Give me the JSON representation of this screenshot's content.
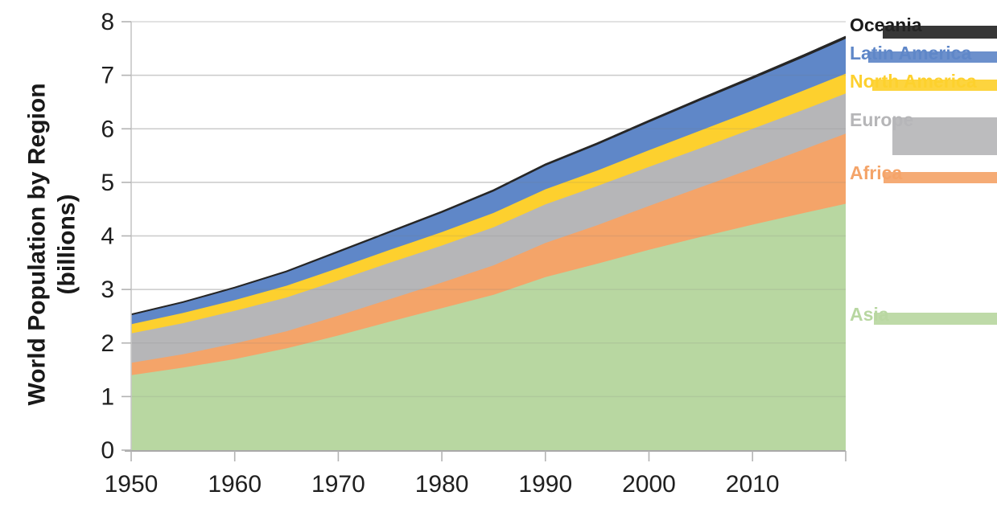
{
  "chart_data": {
    "type": "area",
    "stacked": true,
    "title": "",
    "ylabel": "World Population by Region (billions)",
    "ylabel_lines": [
      "World Population by Region",
      "(billions)"
    ],
    "xlabel": "",
    "x": [
      1950,
      1955,
      1960,
      1965,
      1970,
      1975,
      1980,
      1985,
      1990,
      1995,
      2000,
      2005,
      2010,
      2015,
      2019
    ],
    "series": [
      {
        "name": "Asia",
        "color": "#b8d7a1",
        "values": [
          1.4,
          1.54,
          1.7,
          1.9,
          2.14,
          2.4,
          2.65,
          2.9,
          3.23,
          3.48,
          3.74,
          3.98,
          4.21,
          4.43,
          4.6
        ]
      },
      {
        "name": "Africa",
        "color": "#f4a469",
        "values": [
          0.23,
          0.25,
          0.29,
          0.32,
          0.37,
          0.42,
          0.48,
          0.55,
          0.64,
          0.72,
          0.82,
          0.93,
          1.05,
          1.19,
          1.31
        ]
      },
      {
        "name": "Europe",
        "color": "#b6b6b8",
        "values": [
          0.55,
          0.58,
          0.61,
          0.63,
          0.66,
          0.68,
          0.69,
          0.71,
          0.72,
          0.73,
          0.73,
          0.73,
          0.74,
          0.74,
          0.75
        ]
      },
      {
        "name": "North America",
        "color": "#fdd02e",
        "values": [
          0.17,
          0.19,
          0.2,
          0.22,
          0.23,
          0.24,
          0.25,
          0.27,
          0.28,
          0.29,
          0.31,
          0.33,
          0.34,
          0.36,
          0.37
        ]
      },
      {
        "name": "Latin America",
        "color": "#5f87c8",
        "values": [
          0.17,
          0.19,
          0.22,
          0.25,
          0.29,
          0.32,
          0.36,
          0.4,
          0.44,
          0.48,
          0.52,
          0.56,
          0.59,
          0.62,
          0.65
        ]
      },
      {
        "name": "Oceania",
        "color": "#262626",
        "values": [
          0.013,
          0.014,
          0.016,
          0.018,
          0.02,
          0.021,
          0.023,
          0.025,
          0.027,
          0.029,
          0.031,
          0.034,
          0.037,
          0.04,
          0.042
        ]
      }
    ],
    "x_ticks": [
      1950,
      1960,
      1970,
      1980,
      1990,
      2000,
      2010
    ],
    "y_ticks": [
      0,
      1,
      2,
      3,
      4,
      5,
      6,
      7,
      8
    ],
    "xlim": [
      1950,
      2019
    ],
    "ylim": [
      0,
      8
    ],
    "grid": "horizontal",
    "legend_position": "right",
    "colors": {
      "gridline": "#d9d9d9",
      "axis": "#b3b3b3",
      "tick_label": "#1f1f1f",
      "top_line": "#262626",
      "oceania_label": "#1a1a1a"
    }
  }
}
